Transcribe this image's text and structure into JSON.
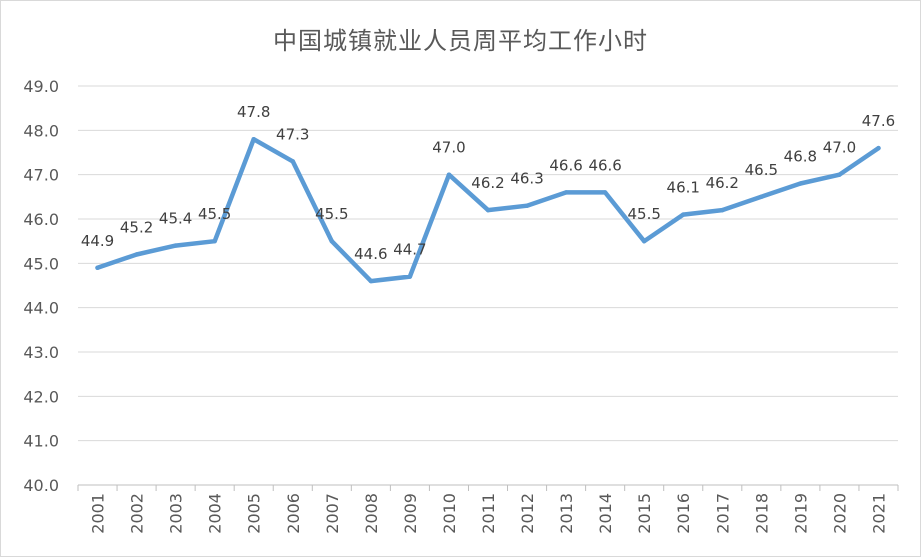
{
  "chart_data": {
    "type": "line",
    "title": "中国城镇就业人员周平均工作小时",
    "xlabel": "",
    "ylabel": "",
    "ylim": [
      40.0,
      49.0
    ],
    "ytick_step": 1.0,
    "grid": true,
    "legend": "none",
    "line_color": "#5b9bd5",
    "x": [
      "2001",
      "2002",
      "2003",
      "2004",
      "2005",
      "2006",
      "2007",
      "2008",
      "2009",
      "2010",
      "2011",
      "2012",
      "2013",
      "2014",
      "2015",
      "2016",
      "2017",
      "2018",
      "2019",
      "2020",
      "2021"
    ],
    "series": [
      {
        "values": [
          44.9,
          45.2,
          45.4,
          45.5,
          47.8,
          47.3,
          45.5,
          44.6,
          44.7,
          47.0,
          46.2,
          46.3,
          46.6,
          46.6,
          45.5,
          46.1,
          46.2,
          46.5,
          46.8,
          47.0,
          47.6
        ]
      }
    ]
  }
}
